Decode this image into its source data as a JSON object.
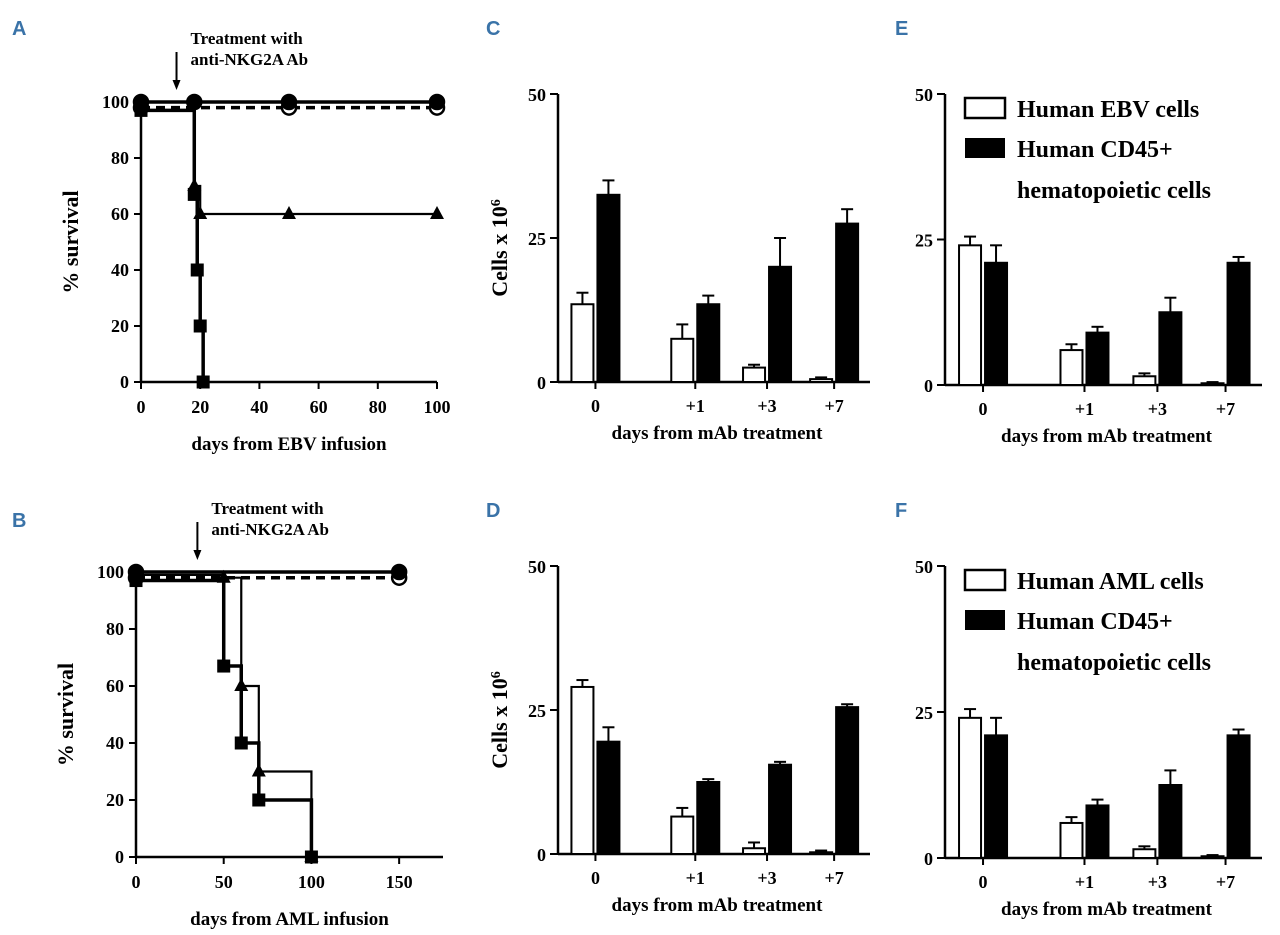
{
  "chart_data": [
    {
      "panel": "A",
      "type": "line",
      "annotation": [
        "Treatment with",
        "anti-NKG2A Ab"
      ],
      "annotation_x": 12,
      "xlabel": "days from EBV infusion",
      "ylabel": "% survival",
      "xlim": [
        0,
        100
      ],
      "ylim": [
        0,
        100
      ],
      "xticks": [
        0,
        20,
        40,
        60,
        80,
        100
      ],
      "yticks": [
        0,
        20,
        40,
        60,
        80,
        100
      ],
      "series": [
        {
          "name": "open circle",
          "marker": "circle-open",
          "dash": true,
          "x": [
            0,
            50,
            100
          ],
          "y": [
            98,
            98,
            98
          ]
        },
        {
          "name": "filled circle",
          "marker": "circle",
          "dash": false,
          "x": [
            0,
            18,
            50,
            100
          ],
          "y": [
            100,
            100,
            100,
            100
          ]
        },
        {
          "name": "triangle",
          "marker": "triangle",
          "dash": false,
          "x": [
            0,
            18,
            20,
            50,
            100
          ],
          "y": [
            100,
            70,
            60,
            60,
            60
          ]
        },
        {
          "name": "square",
          "marker": "square",
          "dash": false,
          "x": [
            0,
            18,
            19,
            20,
            21
          ],
          "y": [
            97,
            67,
            40,
            20,
            0
          ]
        }
      ]
    },
    {
      "panel": "B",
      "type": "line",
      "annotation": [
        "Treatment with",
        "anti-NKG2A Ab"
      ],
      "annotation_x": 35,
      "xlabel": "days from AML infusion",
      "ylabel": "% survival",
      "xlim": [
        0,
        175
      ],
      "ylim": [
        0,
        100
      ],
      "xticks": [
        0,
        50,
        100,
        150
      ],
      "yticks": [
        0,
        20,
        40,
        60,
        80,
        100
      ],
      "series": [
        {
          "name": "open circle",
          "marker": "circle-open",
          "dash": true,
          "x": [
            0,
            150
          ],
          "y": [
            98,
            98
          ]
        },
        {
          "name": "filled circle",
          "marker": "circle",
          "dash": false,
          "x": [
            0,
            150
          ],
          "y": [
            100,
            100
          ]
        },
        {
          "name": "triangle",
          "marker": "triangle",
          "dash": false,
          "x": [
            0,
            50,
            60,
            70,
            100
          ],
          "y": [
            99,
            98,
            60,
            30,
            0
          ]
        },
        {
          "name": "square",
          "marker": "square",
          "dash": false,
          "x": [
            0,
            50,
            60,
            70,
            100
          ],
          "y": [
            97,
            67,
            40,
            20,
            0
          ]
        }
      ]
    },
    {
      "panel": "C",
      "type": "bar",
      "categories": [
        "0",
        "+1",
        "+3",
        "+7"
      ],
      "xlabel": "days from mAb treatment",
      "ylabel": "Cells x 10",
      "ylabel_sup": "6",
      "ylim": [
        0,
        50
      ],
      "yticks": [
        0,
        25,
        50
      ],
      "series": [
        {
          "name": "open",
          "values": [
            13.5,
            7.5,
            2.5,
            0.5
          ],
          "errors": [
            2,
            2.5,
            0.5,
            0.3
          ]
        },
        {
          "name": "filled",
          "values": [
            32.5,
            13.5,
            20,
            27.5
          ],
          "errors": [
            2.5,
            1.5,
            5,
            2.5
          ]
        }
      ]
    },
    {
      "panel": "D",
      "type": "bar",
      "categories": [
        "0",
        "+1",
        "+3",
        "+7"
      ],
      "xlabel": "days from mAb treatment",
      "ylabel": "Cells x 10",
      "ylabel_sup": "6",
      "ylim": [
        0,
        50
      ],
      "yticks": [
        0,
        25,
        50
      ],
      "series": [
        {
          "name": "open",
          "values": [
            29,
            6.5,
            1,
            0.3
          ],
          "errors": [
            1.2,
            1.5,
            1,
            0.3
          ]
        },
        {
          "name": "filled",
          "values": [
            19.5,
            12.5,
            15.5,
            25.5
          ],
          "errors": [
            2.5,
            0.5,
            0.5,
            0.5
          ]
        }
      ]
    },
    {
      "panel": "E",
      "type": "bar",
      "categories": [
        "0",
        "+1",
        "+3",
        "+7"
      ],
      "xlabel": "days from mAb treatment",
      "ylabel": "",
      "ylim": [
        0,
        50
      ],
      "yticks": [
        0,
        25,
        50
      ],
      "legend": [
        "Human EBV cells",
        "Human CD45+",
        "hematopoietic cells"
      ],
      "series": [
        {
          "name": "Human EBV cells",
          "values": [
            24,
            6,
            1.5,
            0.3
          ],
          "errors": [
            1.5,
            1,
            0.5,
            0.2
          ]
        },
        {
          "name": "Human CD45+ hematopoietic cells",
          "values": [
            21,
            9,
            12.5,
            21
          ],
          "errors": [
            3,
            1,
            2.5,
            1
          ]
        }
      ]
    },
    {
      "panel": "F",
      "type": "bar",
      "categories": [
        "0",
        "+1",
        "+3",
        "+7"
      ],
      "xlabel": "days from  mAb treatment",
      "ylabel": "",
      "ylim": [
        0,
        50
      ],
      "yticks": [
        0,
        25,
        50
      ],
      "legend": [
        "Human AML cells",
        "Human CD45+",
        "hematopoietic cells"
      ],
      "series": [
        {
          "name": "Human AML cells",
          "values": [
            24,
            6,
            1.5,
            0.3
          ],
          "errors": [
            1.5,
            1,
            0.5,
            0.2
          ]
        },
        {
          "name": "Human CD45+ hematopoietic cells",
          "values": [
            21,
            9,
            12.5,
            21
          ],
          "errors": [
            3,
            1,
            2.5,
            1
          ]
        }
      ]
    }
  ]
}
